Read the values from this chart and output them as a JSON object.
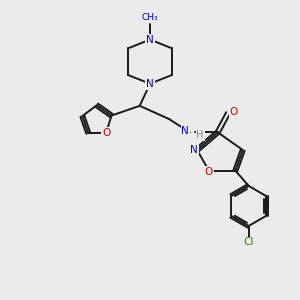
{
  "bg_color": "#ebebeb",
  "atom_colors": {
    "N": "#0000cc",
    "O": "#cc0000",
    "Cl": "#2a8000",
    "H": "#888888"
  },
  "bond_color": "#1a1a1a",
  "figsize": [
    3.0,
    3.0
  ],
  "dpi": 100,
  "lw": 1.4,
  "fs": 7.5
}
